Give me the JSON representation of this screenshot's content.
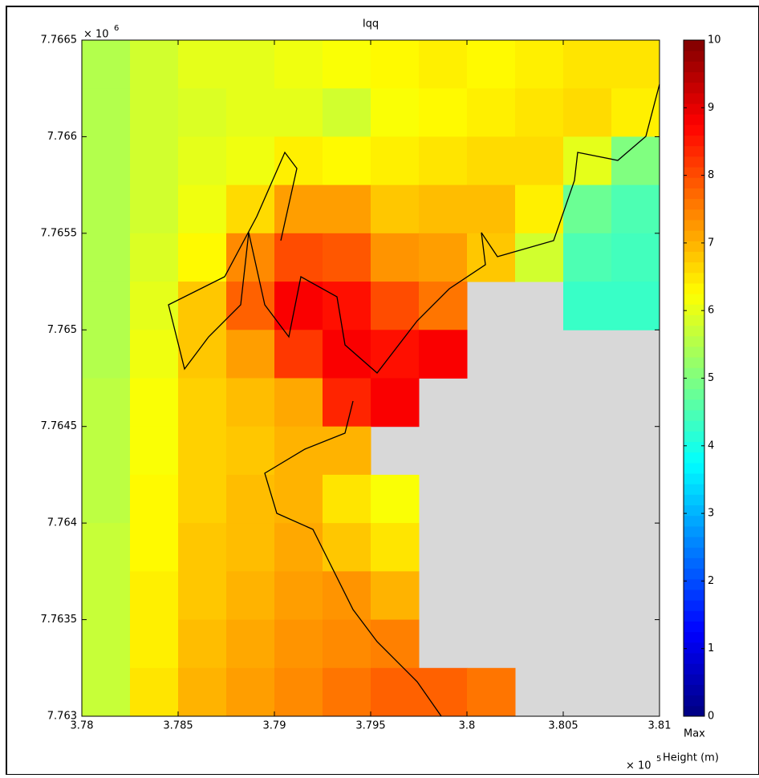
{
  "chart_data": {
    "type": "heatmap",
    "title": "Iqq",
    "colormap": "jet",
    "xlim": [
      3.78,
      3.81
    ],
    "xticks": [
      3.78,
      3.785,
      3.79,
      3.795,
      3.8,
      3.805,
      3.81
    ],
    "x_multiplier": {
      "base": "× 10",
      "exponent": "5"
    },
    "ylim": [
      7.763,
      7.7665
    ],
    "yticks": [
      7.763,
      7.7635,
      7.764,
      7.7645,
      7.765,
      7.7655,
      7.766,
      7.7665
    ],
    "y_multiplier": {
      "base": "× 10",
      "exponent": "6"
    },
    "xbins": [
      3.78,
      3.7825,
      3.785,
      3.7875,
      3.79,
      3.7925,
      3.795,
      3.7975,
      3.8,
      3.8025,
      3.805,
      3.8075,
      3.81
    ],
    "ybins": [
      7.7665,
      7.76625,
      7.766,
      7.76575,
      7.7655,
      7.76525,
      7.765,
      7.76475,
      7.7645,
      7.76425,
      7.764,
      7.76375,
      7.7635,
      7.76325,
      7.763
    ],
    "z": [
      [
        5.5,
        5.8,
        6.0,
        6.0,
        6.1,
        6.2,
        6.3,
        6.4,
        6.3,
        6.4,
        6.5,
        6.5
      ],
      [
        5.5,
        5.8,
        5.9,
        6.0,
        6.0,
        5.8,
        6.2,
        6.3,
        6.4,
        6.5,
        6.6,
        6.4
      ],
      [
        5.5,
        5.8,
        6.0,
        6.1,
        6.4,
        6.3,
        6.4,
        6.5,
        6.6,
        6.6,
        6.0,
        5.0
      ],
      [
        5.5,
        5.8,
        6.1,
        6.6,
        7.2,
        7.2,
        6.8,
        6.9,
        6.9,
        6.4,
        4.8,
        4.5
      ],
      [
        5.5,
        5.9,
        6.3,
        7.4,
        8.0,
        7.9,
        7.3,
        7.2,
        6.8,
        5.8,
        4.5,
        4.4
      ],
      [
        5.5,
        6.0,
        6.8,
        7.8,
        8.8,
        8.6,
        8.0,
        7.6,
        null,
        null,
        4.3,
        4.3
      ],
      [
        5.5,
        6.1,
        6.8,
        7.2,
        8.2,
        8.8,
        8.6,
        8.8,
        null,
        null,
        null,
        null
      ],
      [
        5.6,
        6.2,
        6.7,
        6.9,
        7.1,
        8.4,
        8.8,
        null,
        null,
        null,
        null,
        null
      ],
      [
        5.6,
        6.2,
        6.7,
        6.8,
        7.0,
        7.0,
        null,
        null,
        null,
        null,
        null,
        null
      ],
      [
        5.6,
        6.3,
        6.7,
        6.9,
        7.0,
        6.5,
        6.2,
        null,
        null,
        null,
        null,
        null
      ],
      [
        5.7,
        6.3,
        6.8,
        6.9,
        7.1,
        6.8,
        6.5,
        null,
        null,
        null,
        null,
        null
      ],
      [
        5.7,
        6.4,
        6.8,
        7.0,
        7.2,
        7.3,
        7.0,
        null,
        null,
        null,
        null,
        null
      ],
      [
        5.7,
        6.4,
        6.9,
        7.1,
        7.3,
        7.4,
        7.5,
        null,
        null,
        null,
        null,
        null
      ],
      [
        5.7,
        6.5,
        7.0,
        7.2,
        7.4,
        7.6,
        7.8,
        7.8,
        7.6,
        null,
        null,
        null
      ]
    ],
    "clim": [
      0,
      10
    ],
    "cticks": [
      0,
      1,
      2,
      3,
      4,
      5,
      6,
      7,
      8,
      9,
      10
    ],
    "colorbar_label": [
      "Max",
      "Height (m)"
    ]
  }
}
